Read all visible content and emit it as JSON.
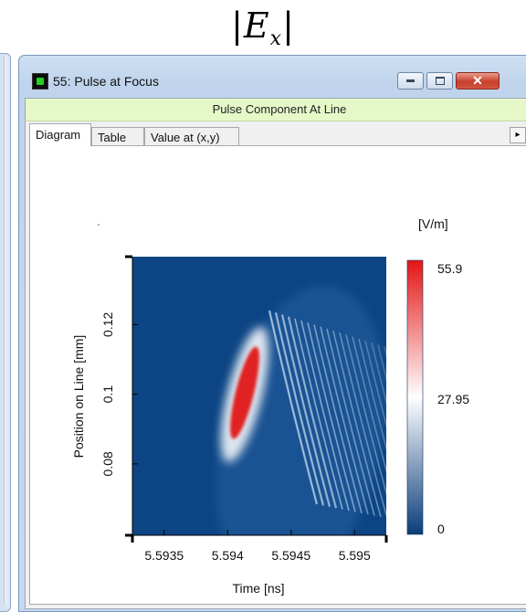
{
  "figure_title": {
    "main": "E",
    "sub": "x"
  },
  "window": {
    "title": "55: Pulse at Focus",
    "subtitle": "Pulse Component At Line",
    "buttons": {
      "minimize": "—",
      "maximize": "□",
      "close": "✕"
    }
  },
  "tabs": [
    {
      "label": "Diagram",
      "active": true
    },
    {
      "label": "Table",
      "active": false
    },
    {
      "label": "Value at (x,y)",
      "active": false
    }
  ],
  "tab_scroll_label": "▸",
  "chart_data": {
    "type": "heatmap",
    "xlabel": "Time [ns]",
    "ylabel": "Position on Line [mm]",
    "x_ticks": [
      "5.5935",
      "5.594",
      "5.5945",
      "5.595"
    ],
    "y_ticks": [
      "0.08",
      "0.1",
      "0.12"
    ],
    "xlim": [
      5.59325,
      5.59525
    ],
    "ylim": [
      0.0595,
      0.1395
    ],
    "colorbar": {
      "unit": "[V/m]",
      "max": "55.9",
      "mid": "27.95",
      "min": "0",
      "colors": [
        "#0b3d7a",
        "#ffffff",
        "#e41515"
      ]
    },
    "features": {
      "peak_time_ns": 5.5941,
      "peak_position_mm": 0.1,
      "peak_value": 55.9,
      "fringe_direction": "diagonal tails toward later time and smaller position"
    }
  }
}
